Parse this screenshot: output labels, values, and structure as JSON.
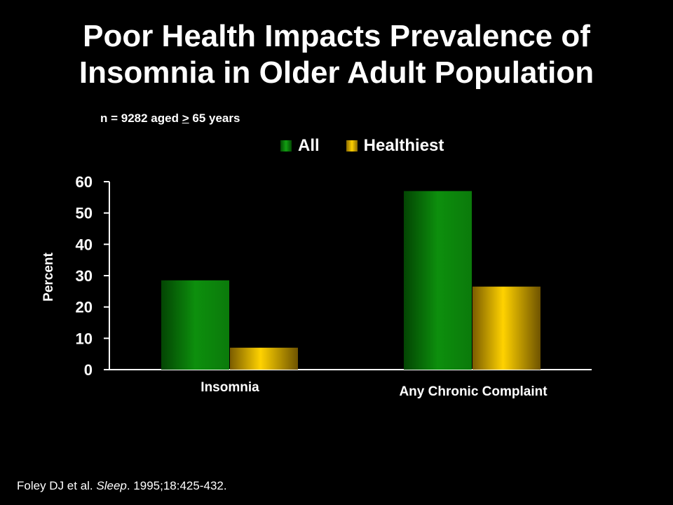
{
  "title_line1": "Poor Health Impacts Prevalence of",
  "title_line2": "Insomnia in Older Adult Population",
  "subtitle": {
    "pre": "n = 9282 aged ",
    "symbol": ">",
    "post": " 65 years"
  },
  "citation": {
    "authors": "Foley DJ et al. ",
    "journal": "Sleep",
    "ref": ". 1995;18:425-432."
  },
  "colors": {
    "all": "#0a7a0a",
    "healthiest": "#f2c200",
    "background": "#000000",
    "text": "#ffffff"
  },
  "chart_data": {
    "type": "bar",
    "title": "Poor Health Impacts Prevalence of Insomnia in Older Adult Population",
    "ylabel": "Percent",
    "xlabel": "",
    "ylim": [
      0,
      60
    ],
    "yticks": [
      "0",
      "10",
      "20",
      "30",
      "40",
      "50",
      "60"
    ],
    "categories": [
      "Insomnia",
      "Any Chronic Complaint"
    ],
    "series": [
      {
        "name": "All",
        "values": [
          28.5,
          57
        ]
      },
      {
        "name": "Healthiest",
        "values": [
          7,
          26.5
        ]
      }
    ],
    "legend_position": "top"
  }
}
